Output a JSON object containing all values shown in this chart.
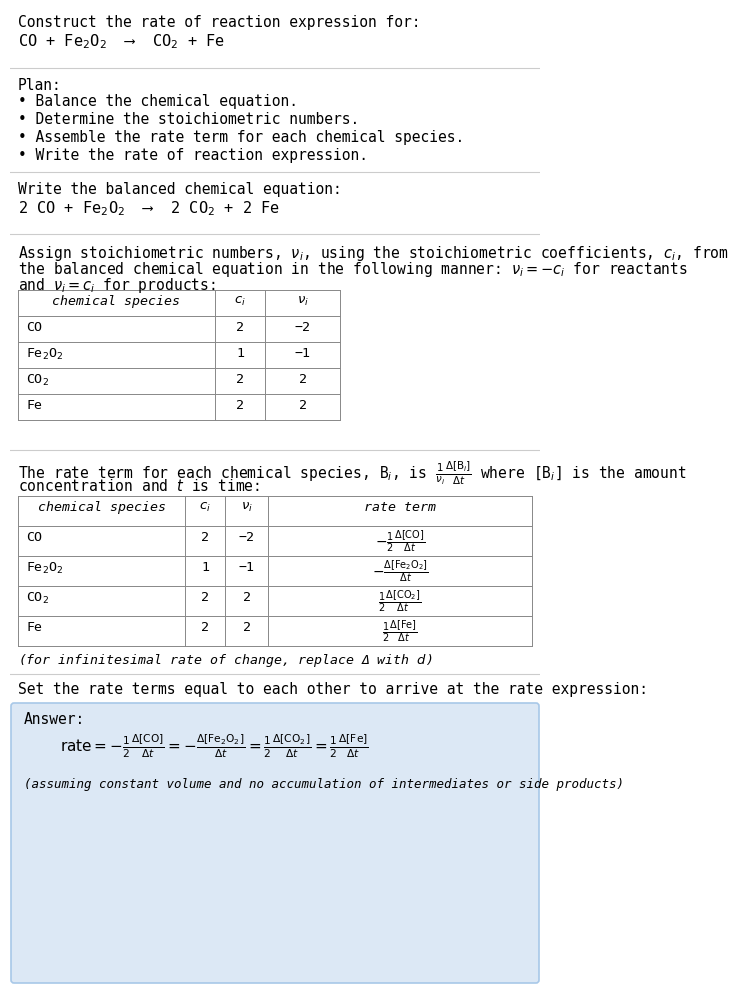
{
  "bg_color": "#ffffff",
  "text_color": "#000000",
  "light_blue_bg": "#dce8f5",
  "light_blue_edge": "#a8c8e8",
  "title_text": "Construct the rate of reaction expression for:",
  "reaction_unbalanced": "CO + Fe$_2$O$_2$  ⟶  CO$_2$ + Fe",
  "plan_header": "Plan:",
  "plan_items": [
    "• Balance the chemical equation.",
    "• Determine the stoichiometric numbers.",
    "• Assemble the rate term for each chemical species.",
    "• Write the rate of reaction expression."
  ],
  "balanced_header": "Write the balanced chemical equation:",
  "balanced_eq": "2 CO + Fe$_2$O$_2$  ⟶  2 CO$_2$ + 2 Fe",
  "assign_text1": "Assign stoichiometric numbers, $\\nu_i$, using the stoichiometric coefficients, $c_i$, from",
  "assign_text2": "the balanced chemical equation in the following manner: $\\nu_i = -c_i$ for reactants",
  "assign_text3": "and $\\nu_i = c_i$ for products:",
  "table1_headers": [
    "chemical species",
    "$c_i$",
    "$\\nu_i$"
  ],
  "table1_rows": [
    [
      "CO",
      "2",
      "−2"
    ],
    [
      "Fe$_2$O$_2$",
      "1",
      "−1"
    ],
    [
      "CO$_2$",
      "2",
      "2"
    ],
    [
      "Fe",
      "2",
      "2"
    ]
  ],
  "rate_text1": "The rate term for each chemical species, B$_i$, is $\\frac{1}{\\nu_i}\\frac{\\Delta[\\mathrm{B}_i]}{\\Delta t}$ where [B$_i$] is the amount",
  "rate_text2": "concentration and $t$ is time:",
  "table2_headers": [
    "chemical species",
    "$c_i$",
    "$\\nu_i$",
    "rate term"
  ],
  "table2_rows": [
    [
      "CO",
      "2",
      "−2",
      "$-\\frac{1}{2}\\frac{\\Delta[\\mathrm{CO}]}{\\Delta t}$"
    ],
    [
      "Fe$_2$O$_2$",
      "1",
      "−1",
      "$-\\frac{\\Delta[\\mathrm{Fe_2O_2}]}{\\Delta t}$"
    ],
    [
      "CO$_2$",
      "2",
      "2",
      "$\\frac{1}{2}\\frac{\\Delta[\\mathrm{CO_2}]}{\\Delta t}$"
    ],
    [
      "Fe",
      "2",
      "2",
      "$\\frac{1}{2}\\frac{\\Delta[\\mathrm{Fe}]}{\\Delta t}$"
    ]
  ],
  "infinitesimal_note": "(for infinitesimal rate of change, replace Δ with $d$)",
  "set_equal_text": "Set the rate terms equal to each other to arrive at the rate expression:",
  "answer_label": "Answer:",
  "answer_eq": "$\\mathrm{rate} = -\\frac{1}{2}\\frac{\\Delta[\\mathrm{CO}]}{\\Delta t} = -\\frac{\\Delta[\\mathrm{Fe_2O_2}]}{\\Delta t} = \\frac{1}{2}\\frac{\\Delta[\\mathrm{CO_2}]}{\\Delta t} = \\frac{1}{2}\\frac{\\Delta[\\mathrm{Fe}]}{\\Delta t}$",
  "assumption_note": "(assuming constant volume and no accumulation of intermediates or side products)"
}
